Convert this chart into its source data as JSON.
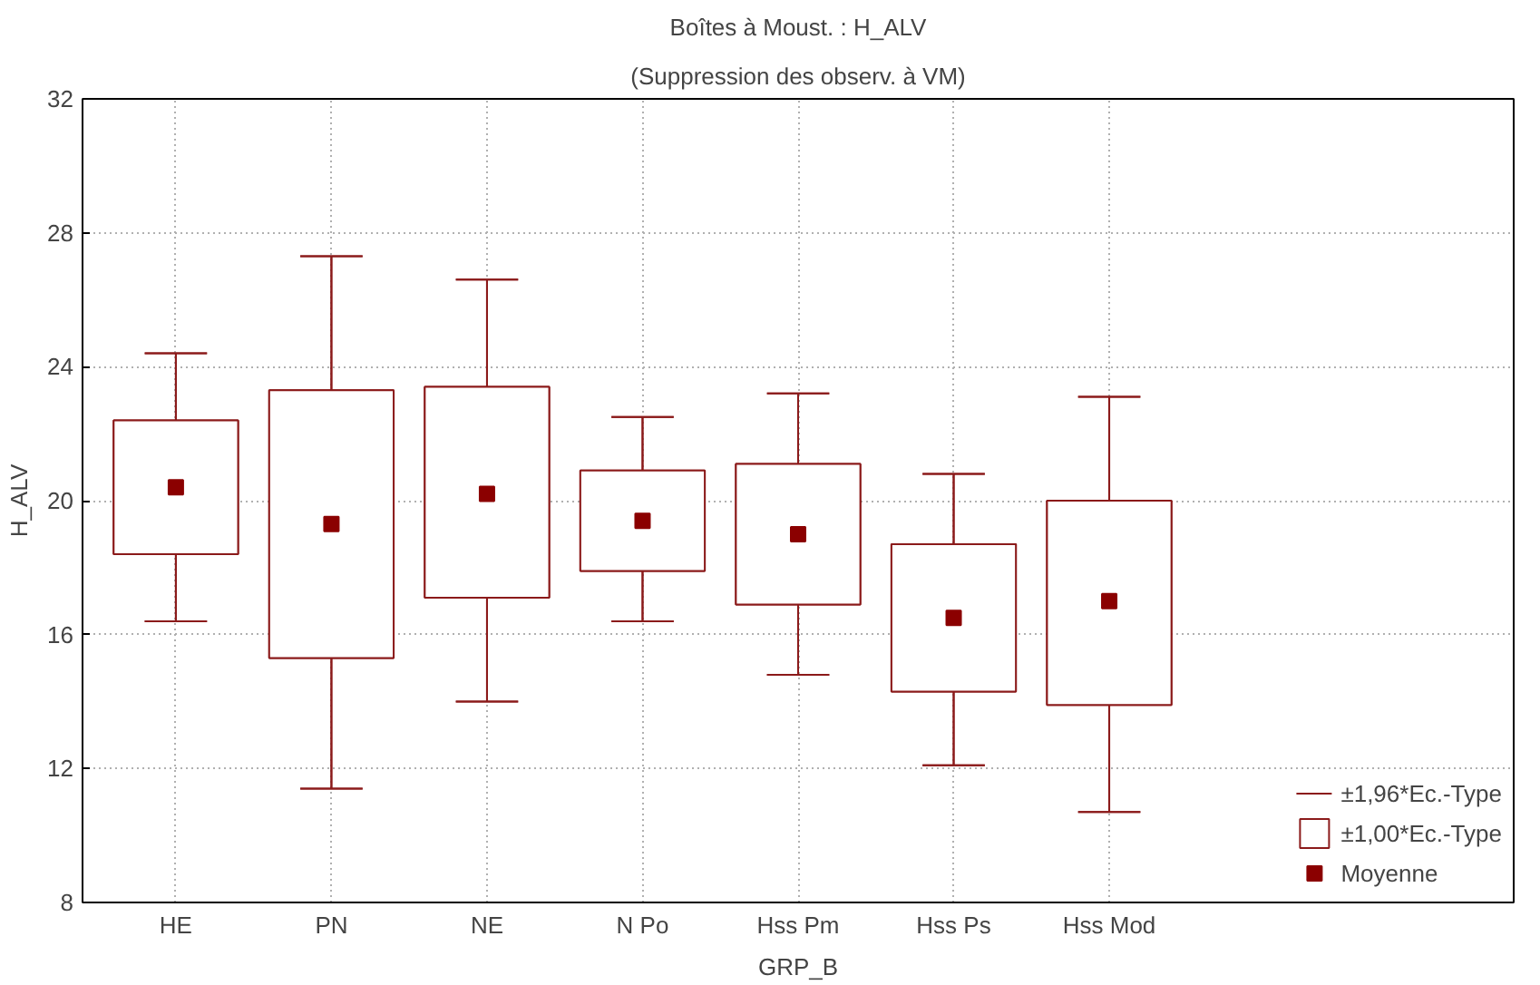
{
  "chart_data": {
    "type": "box",
    "title": "Boîtes à Moust. : H_ALV",
    "subtitle": "(Suppression des observ. à VM)",
    "xlabel": "GRP_B",
    "ylabel": "H_ALV",
    "categories": [
      "HE",
      "PN",
      "NE",
      "N Po",
      "Hss Pm",
      "Hss Ps",
      "Hss Mod"
    ],
    "series": [
      {
        "name": "±1,96*Ec.-Type",
        "color": "#8b1a1a",
        "type": "box",
        "boxes": [
          {
            "low": 16.4,
            "q1": 18.4,
            "q3": 22.4,
            "high": 24.4
          },
          {
            "low": 11.4,
            "q1": 15.3,
            "q3": 23.3,
            "high": 27.3
          },
          {
            "low": 14.0,
            "q1": 17.1,
            "q3": 23.4,
            "high": 26.6
          },
          {
            "low": 16.4,
            "q1": 17.9,
            "q3": 20.9,
            "high": 22.5
          },
          {
            "low": 14.8,
            "q1": 16.9,
            "q3": 21.1,
            "high": 23.2
          },
          {
            "low": 12.1,
            "q1": 14.3,
            "q3": 18.7,
            "high": 20.8
          },
          {
            "low": 10.7,
            "q1": 13.9,
            "q3": 20.0,
            "high": 23.1
          }
        ]
      },
      {
        "name": "±1,00*Ec.-Type",
        "color": "#8b1a1a",
        "type": "box",
        "boxes": [
          {
            "low": 16.4,
            "q1": 18.4,
            "q3": 22.4,
            "high": 24.4
          },
          {
            "low": 11.4,
            "q1": 15.3,
            "q3": 23.3,
            "high": 27.3
          },
          {
            "low": 14.0,
            "q1": 17.1,
            "q3": 23.4,
            "high": 26.6
          },
          {
            "low": 16.4,
            "q1": 17.9,
            "q3": 20.9,
            "high": 22.5
          },
          {
            "low": 14.8,
            "q1": 16.9,
            "q3": 21.1,
            "high": 23.2
          },
          {
            "low": 12.1,
            "q1": 14.3,
            "q3": 18.7,
            "high": 20.8
          },
          {
            "low": 10.7,
            "q1": 13.9,
            "q3": 20.0,
            "high": 23.1
          }
        ]
      },
      {
        "name": "Moyenne",
        "color": "#8b0000",
        "type": "scatter",
        "values": [
          20.4,
          19.3,
          20.2,
          19.4,
          19.0,
          16.5,
          17.0
        ]
      }
    ],
    "ylim": [
      8,
      32
    ],
    "yticks": [
      8,
      12,
      16,
      20,
      24,
      28,
      32
    ],
    "grid": true,
    "legend": "bottom right",
    "marker": "square"
  }
}
